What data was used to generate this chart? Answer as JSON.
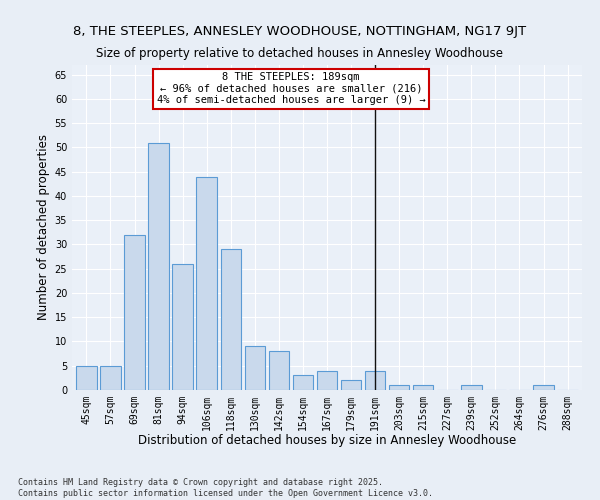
{
  "title": "8, THE STEEPLES, ANNESLEY WOODHOUSE, NOTTINGHAM, NG17 9JT",
  "subtitle": "Size of property relative to detached houses in Annesley Woodhouse",
  "xlabel": "Distribution of detached houses by size in Annesley Woodhouse",
  "ylabel": "Number of detached properties",
  "categories": [
    "45sqm",
    "57sqm",
    "69sqm",
    "81sqm",
    "94sqm",
    "106sqm",
    "118sqm",
    "130sqm",
    "142sqm",
    "154sqm",
    "167sqm",
    "179sqm",
    "191sqm",
    "203sqm",
    "215sqm",
    "227sqm",
    "239sqm",
    "252sqm",
    "264sqm",
    "276sqm",
    "288sqm"
  ],
  "values": [
    5,
    5,
    32,
    51,
    26,
    44,
    29,
    9,
    8,
    3,
    4,
    2,
    4,
    1,
    1,
    0,
    1,
    0,
    0,
    1,
    0
  ],
  "bar_color": "#c9d9ec",
  "bar_edge_color": "#5b9bd5",
  "vline_x_index": 12,
  "vline_color": "#111111",
  "annotation_text": "8 THE STEEPLES: 189sqm\n← 96% of detached houses are smaller (216)\n4% of semi-detached houses are larger (9) →",
  "annotation_box_color": "#ffffff",
  "annotation_box_edge_color": "#cc0000",
  "ylim": [
    0,
    67
  ],
  "yticks": [
    0,
    5,
    10,
    15,
    20,
    25,
    30,
    35,
    40,
    45,
    50,
    55,
    60,
    65
  ],
  "bg_color": "#e8eef6",
  "plot_bg_color": "#eaf0f8",
  "footer": "Contains HM Land Registry data © Crown copyright and database right 2025.\nContains public sector information licensed under the Open Government Licence v3.0.",
  "title_fontsize": 9.5,
  "subtitle_fontsize": 8.5,
  "xlabel_fontsize": 8.5,
  "ylabel_fontsize": 8.5,
  "tick_fontsize": 7,
  "annotation_fontsize": 7.5,
  "footer_fontsize": 6
}
